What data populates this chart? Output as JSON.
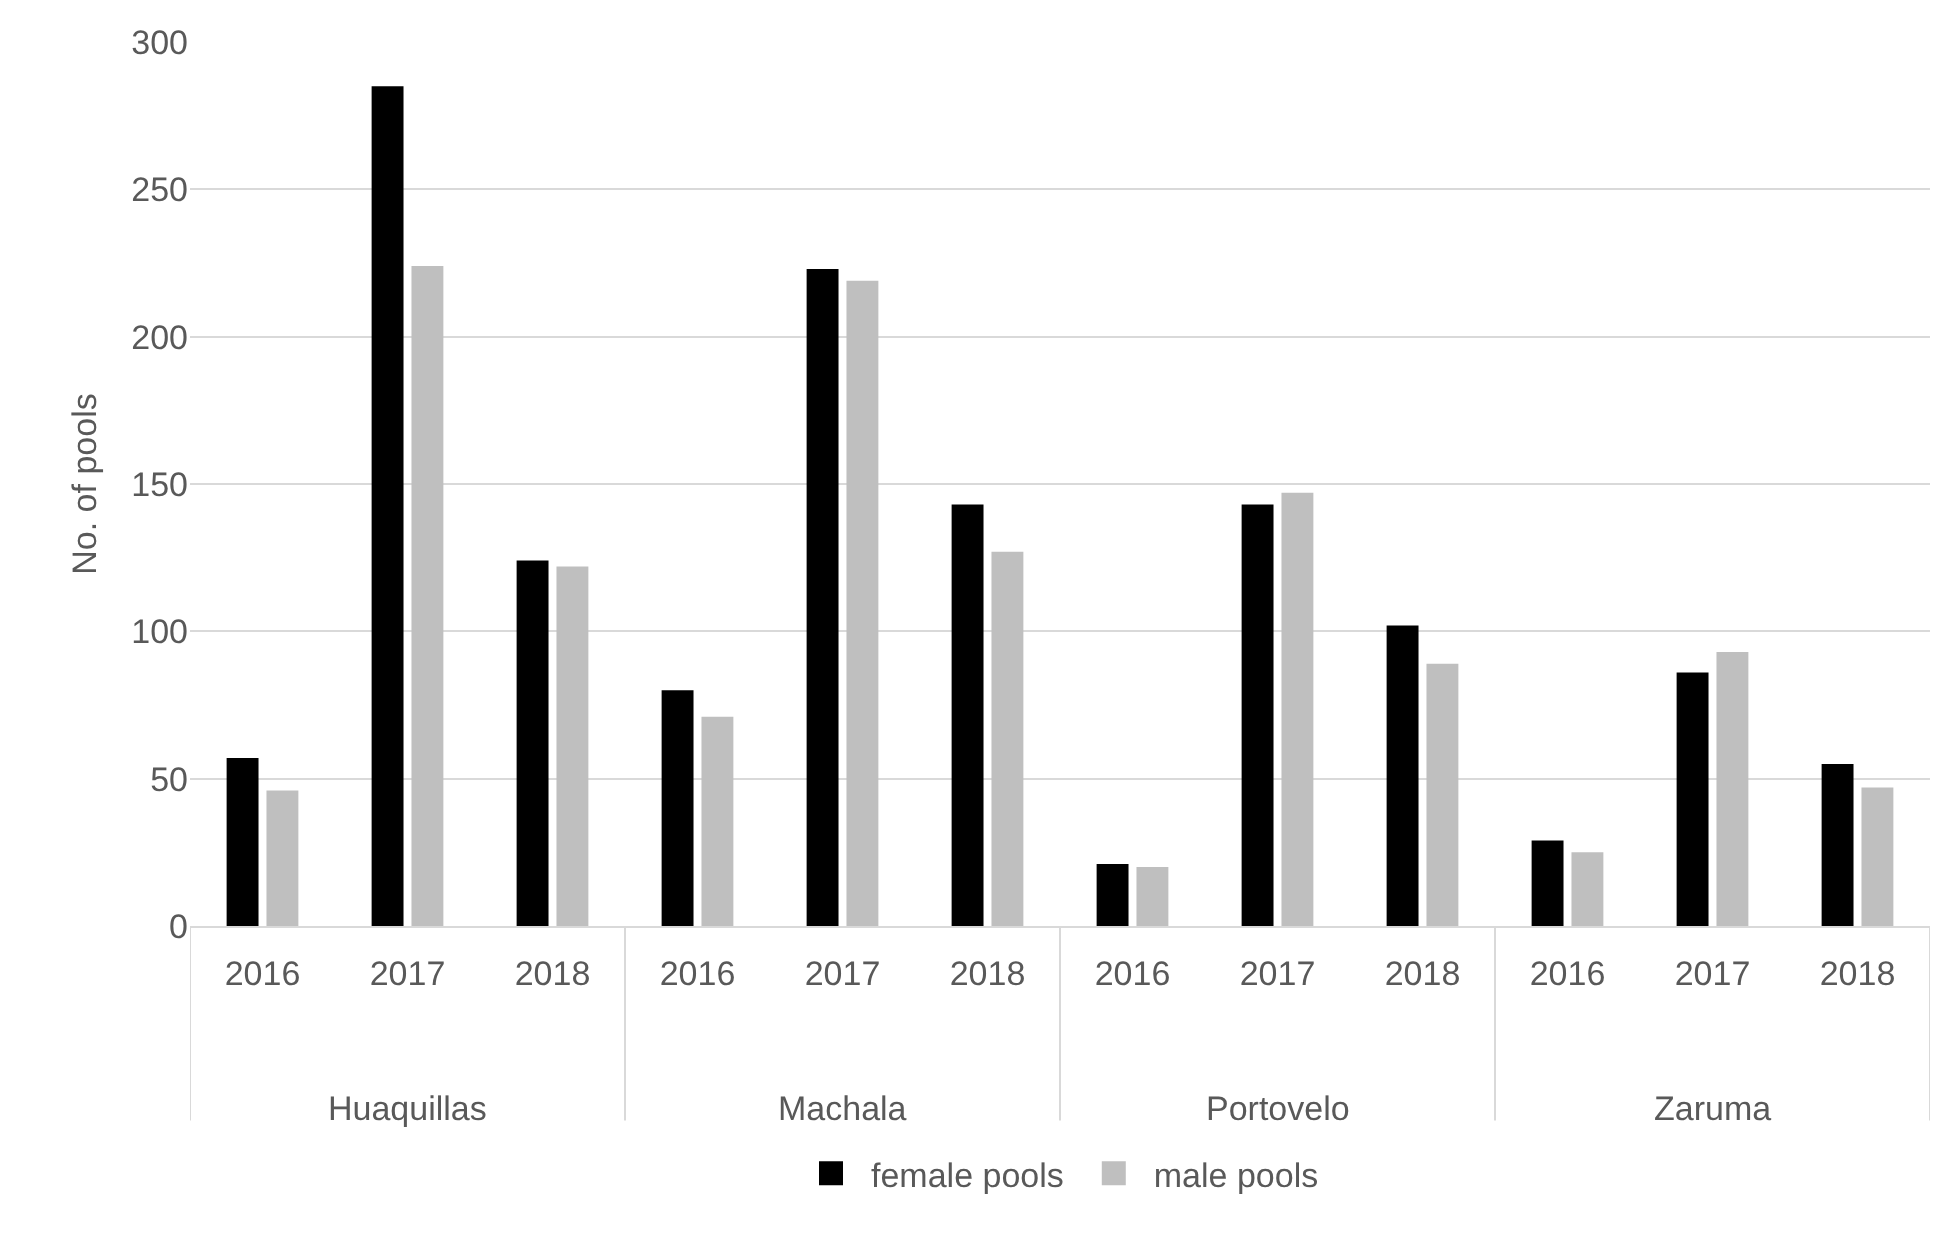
{
  "chart_data": {
    "type": "bar",
    "ylabel": "No. of pools",
    "categories": [
      "2016",
      "2017",
      "2018",
      "2016",
      "2017",
      "2018",
      "2016",
      "2017",
      "2018",
      "2016",
      "2017",
      "2018"
    ],
    "annotations": [
      "Huaquillas",
      "Machala",
      "Portovelo",
      "Zaruma"
    ],
    "series": [
      {
        "name": "female pools",
        "color": "#000000",
        "values": [
          57,
          285,
          124,
          80,
          223,
          143,
          21,
          143,
          102,
          29,
          86,
          55
        ]
      },
      {
        "name": "male pools",
        "color": "#bfbfbf",
        "values": [
          46,
          224,
          122,
          71,
          219,
          127,
          20,
          147,
          89,
          25,
          93,
          47
        ]
      }
    ],
    "ylim": [
      0,
      300
    ],
    "yticks": [
      0,
      50,
      100,
      150,
      200,
      250,
      300
    ],
    "grid": "y",
    "legend": "bottom"
  }
}
